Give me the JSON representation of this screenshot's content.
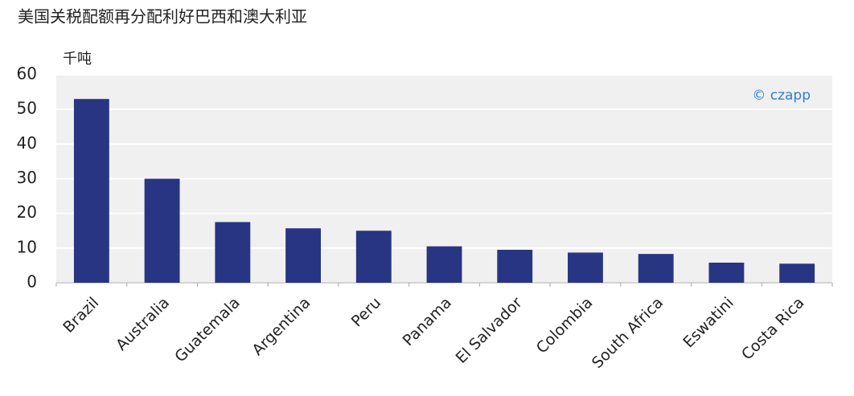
{
  "chart_data": {
    "type": "bar",
    "title": "美国关税配额再分配利好巴西和澳大利亚",
    "y_label": "千吨",
    "watermark": "© czapp",
    "categories": [
      "Brazil",
      "Australia",
      "Guatemala",
      "Argentina",
      "Peru",
      "Panama",
      "El Salvador",
      "Colombia",
      "South Africa",
      "Eswatini",
      "Costa Rica"
    ],
    "values": [
      53,
      30,
      17.5,
      15.7,
      15,
      10.5,
      9.5,
      8.7,
      8.3,
      5.8,
      5.5
    ],
    "color": "#283583",
    "ylim": [
      0,
      60
    ],
    "yticks": [
      0,
      10,
      20,
      30,
      40,
      50,
      60
    ],
    "grid": true
  }
}
